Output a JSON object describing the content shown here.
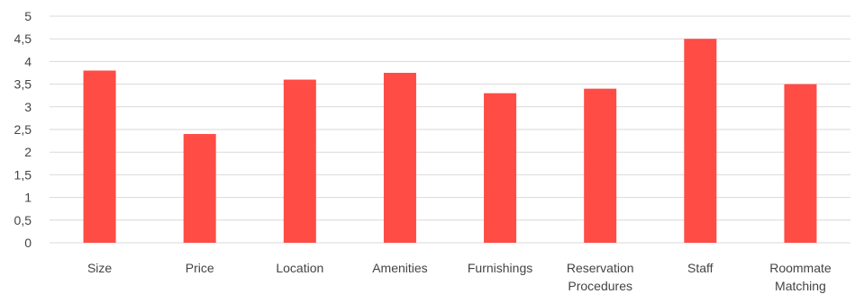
{
  "chart_data": {
    "type": "bar",
    "categories": [
      "Size",
      "Price",
      "Location",
      "Amenities",
      "Furnishings",
      "Reservation Procedures",
      "Staff",
      "Roommate Matching"
    ],
    "category_lines": [
      [
        "Size"
      ],
      [
        "Price"
      ],
      [
        "Location"
      ],
      [
        "Amenities"
      ],
      [
        "Furnishings"
      ],
      [
        "Reservation",
        "Procedures"
      ],
      [
        "Staff"
      ],
      [
        "Roommate",
        "Matching"
      ]
    ],
    "values": [
      3.8,
      2.4,
      3.6,
      3.75,
      3.3,
      3.4,
      4.5,
      3.5
    ],
    "y_ticks": [
      "0",
      "0,5",
      "1",
      "1,5",
      "2",
      "2,5",
      "3",
      "3,5",
      "4",
      "4,5",
      "5"
    ],
    "ylim": [
      0,
      5
    ],
    "grid": true,
    "bar_color": "#ff4c45",
    "grid_color": "#d9d9d9"
  }
}
